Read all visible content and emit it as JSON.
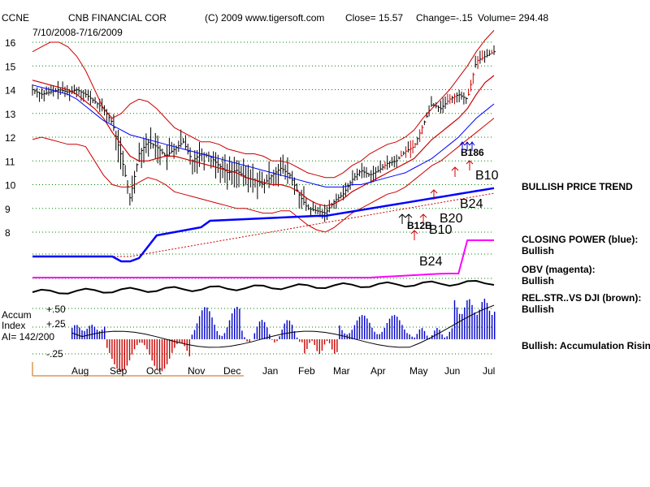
{
  "header": {
    "ticker": "CCNE",
    "company": "CNB FINANCIAL COR",
    "copyright": "(C) 2009 www.tigersoft.com",
    "close": "Close=  15.57",
    "change": "Change=-.15",
    "volume": "Volume= 294.48",
    "date_range": "7/10/2008-7/16/2009"
  },
  "accum_labels": {
    "line1": "Accum",
    "line2": "Index",
    "line3": "AI= 142/200",
    "ticks": [
      "+.50",
      "+.25",
      "-.25"
    ]
  },
  "signals": {
    "b10_upper": "B10",
    "b24_upper": "B24",
    "b20": "B20",
    "b10_lower": "B10",
    "b24_lower": "B24",
    "cluster_may": "B12B",
    "cluster_jun": "B186"
  },
  "right_panel": {
    "price_trend": "BULLISH PRICE TREND",
    "cp_title": "CLOSING POWER (blue):",
    "cp_value": "Bullish",
    "obv_title": "OBV (magenta):",
    "obv_value": "Bullish",
    "rel_title": "REL.STR..VS DJI (brown):",
    "rel_value": "Bullish",
    "accum_note": "Bullish: Accumulation Rising"
  },
  "colors": {
    "band": "#cc0000",
    "ma_blue": "#0000ff",
    "price": "#000000",
    "obv": "#ff00ff",
    "rel_str": "#000000",
    "accum_pos": "#0000cc",
    "accum_neg": "#cc0000",
    "grid": "#008000"
  },
  "chart_data": {
    "type": "line",
    "title": "CNB FINANCIAL COR",
    "x_month_labels": [
      "Aug",
      "Sep",
      "Oct",
      "Nov",
      "Dec",
      "Jan",
      "Feb",
      "Mar",
      "Apr",
      "May",
      "Jun",
      "Jul"
    ],
    "y_tick_labels": [
      "16",
      "15",
      "14",
      "13",
      "12",
      "11",
      "10",
      "9",
      "8"
    ],
    "ylim": [
      7.5,
      16.5
    ],
    "grid": true,
    "weeks": 53,
    "series": [
      {
        "name": "price",
        "values": [
          14.0,
          13.8,
          13.9,
          14.0,
          13.9,
          14.0,
          13.8,
          13.5,
          13.2,
          12.6,
          11.2,
          9.4,
          11.3,
          11.8,
          11.6,
          11.2,
          11.5,
          11.8,
          11.0,
          11.3,
          11.2,
          10.8,
          10.5,
          10.6,
          10.3,
          10.2,
          10.0,
          10.4,
          10.7,
          10.4,
          9.6,
          9.0,
          8.9,
          8.8,
          9.3,
          9.6,
          10.2,
          10.6,
          10.4,
          10.6,
          10.9,
          11.0,
          11.4,
          11.6,
          12.5,
          13.4,
          13.2,
          13.6,
          13.8,
          13.6,
          15.2,
          15.4,
          15.6
        ]
      },
      {
        "name": "band-upper",
        "values": [
          15.6,
          15.8,
          16.0,
          16.0,
          15.8,
          15.4,
          14.8,
          14.0,
          13.2,
          12.8,
          13.0,
          13.4,
          13.6,
          13.5,
          13.2,
          12.8,
          12.4,
          12.2,
          12.0,
          11.8,
          11.8,
          11.7,
          11.5,
          11.4,
          11.3,
          11.3,
          11.2,
          11.0,
          11.0,
          10.9,
          10.7,
          10.5,
          10.4,
          10.3,
          10.3,
          10.5,
          10.8,
          11.0,
          11.3,
          11.5,
          11.7,
          11.8,
          12.0,
          12.3,
          12.8,
          13.2,
          13.6,
          14.0,
          14.5,
          15.0,
          15.6,
          16.1,
          16.5
        ]
      },
      {
        "name": "band-lower",
        "values": [
          11.9,
          12.0,
          11.9,
          11.8,
          11.7,
          11.7,
          11.6,
          11.0,
          10.4,
          10.0,
          9.9,
          9.9,
          10.1,
          10.3,
          10.2,
          10.0,
          9.7,
          9.6,
          9.5,
          9.4,
          9.3,
          9.2,
          9.1,
          9.0,
          9.0,
          8.9,
          8.8,
          8.8,
          8.9,
          8.9,
          8.6,
          8.3,
          8.1,
          8.0,
          8.2,
          8.5,
          8.8,
          9.0,
          9.2,
          9.4,
          9.6,
          9.7,
          9.9,
          10.2,
          10.5,
          10.8,
          11.0,
          11.3,
          11.6,
          11.9,
          12.2,
          12.5,
          12.8
        ]
      },
      {
        "name": "ma-red",
        "values": [
          14.4,
          14.3,
          14.2,
          14.1,
          14.0,
          13.8,
          13.5,
          13.2,
          12.8,
          12.2,
          11.7,
          11.2,
          11.0,
          11.0,
          11.1,
          11.2,
          11.2,
          11.1,
          11.0,
          10.9,
          10.8,
          10.7,
          10.6,
          10.5,
          10.3,
          10.2,
          10.1,
          10.0,
          10.0,
          9.9,
          9.7,
          9.4,
          9.2,
          9.1,
          9.2,
          9.4,
          9.7,
          9.9,
          10.1,
          10.3,
          10.5,
          10.7,
          10.9,
          11.1,
          11.5,
          11.9,
          12.2,
          12.5,
          12.8,
          13.2,
          13.8,
          14.3,
          14.6
        ]
      },
      {
        "name": "ma-blue",
        "values": [
          14.2,
          14.1,
          14.0,
          13.9,
          13.8,
          13.6,
          13.3,
          13.0,
          12.7,
          12.5,
          12.3,
          12.1,
          12.0,
          11.9,
          11.8,
          11.7,
          11.6,
          11.5,
          11.4,
          11.3,
          11.2,
          11.1,
          11.0,
          10.9,
          10.8,
          10.7,
          10.6,
          10.5,
          10.4,
          10.3,
          10.2,
          10.1,
          10.0,
          9.9,
          9.9,
          9.9,
          10.0,
          10.0,
          10.1,
          10.2,
          10.3,
          10.4,
          10.5,
          10.7,
          10.9,
          11.1,
          11.4,
          11.7,
          12.0,
          12.4,
          12.8,
          13.1,
          13.4
        ]
      }
    ]
  }
}
